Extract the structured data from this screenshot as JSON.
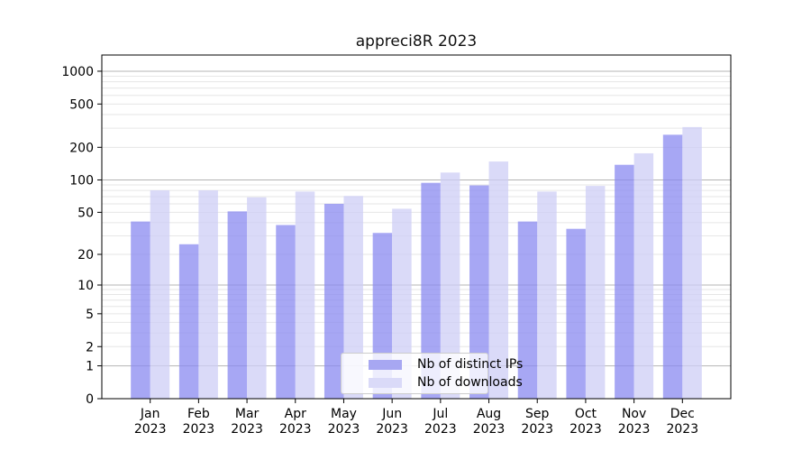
{
  "title": "appreci8R 2023",
  "colors": {
    "ip_bar": "#8a8af0",
    "downloads_bar": "#cecef6",
    "ip_swatch": "#a7a7f2",
    "downloads_swatch": "#dadaf8",
    "grid_major": "#b4b4b4",
    "grid_minor": "#e6e6e6",
    "spine": "#000000",
    "tick_text": "#000000"
  },
  "legend": {
    "items": [
      {
        "label": "Nb of distinct IPs",
        "color_key": "ip_swatch"
      },
      {
        "label": "Nb of downloads",
        "color_key": "downloads_swatch"
      }
    ]
  },
  "chart_data": {
    "type": "bar",
    "title": "appreci8R 2023",
    "categories": [
      "Jan 2023",
      "Feb 2023",
      "Mar 2023",
      "Apr 2023",
      "May 2023",
      "Jun 2023",
      "Jul 2023",
      "Aug 2023",
      "Sep 2023",
      "Oct 2023",
      "Nov 2023",
      "Dec 2023"
    ],
    "series": [
      {
        "name": "Nb of distinct IPs",
        "values": [
          41,
          25,
          51,
          38,
          60,
          32,
          94,
          89,
          41,
          35,
          138,
          261
        ]
      },
      {
        "name": "Nb of downloads",
        "values": [
          80,
          80,
          69,
          78,
          71,
          54,
          117,
          148,
          78,
          88,
          176,
          307
        ]
      }
    ],
    "yscale": "log10(value+1)",
    "yticks": [
      1000,
      500,
      200,
      100,
      50,
      20,
      10,
      5,
      2,
      1,
      0
    ],
    "ylim": [
      0,
      1400
    ],
    "grid": "horizontal, minor log gridlines at 2-9 per decade, darker lines at powers of 10",
    "legend_position": "lower center",
    "xlabel": "",
    "ylabel": ""
  }
}
